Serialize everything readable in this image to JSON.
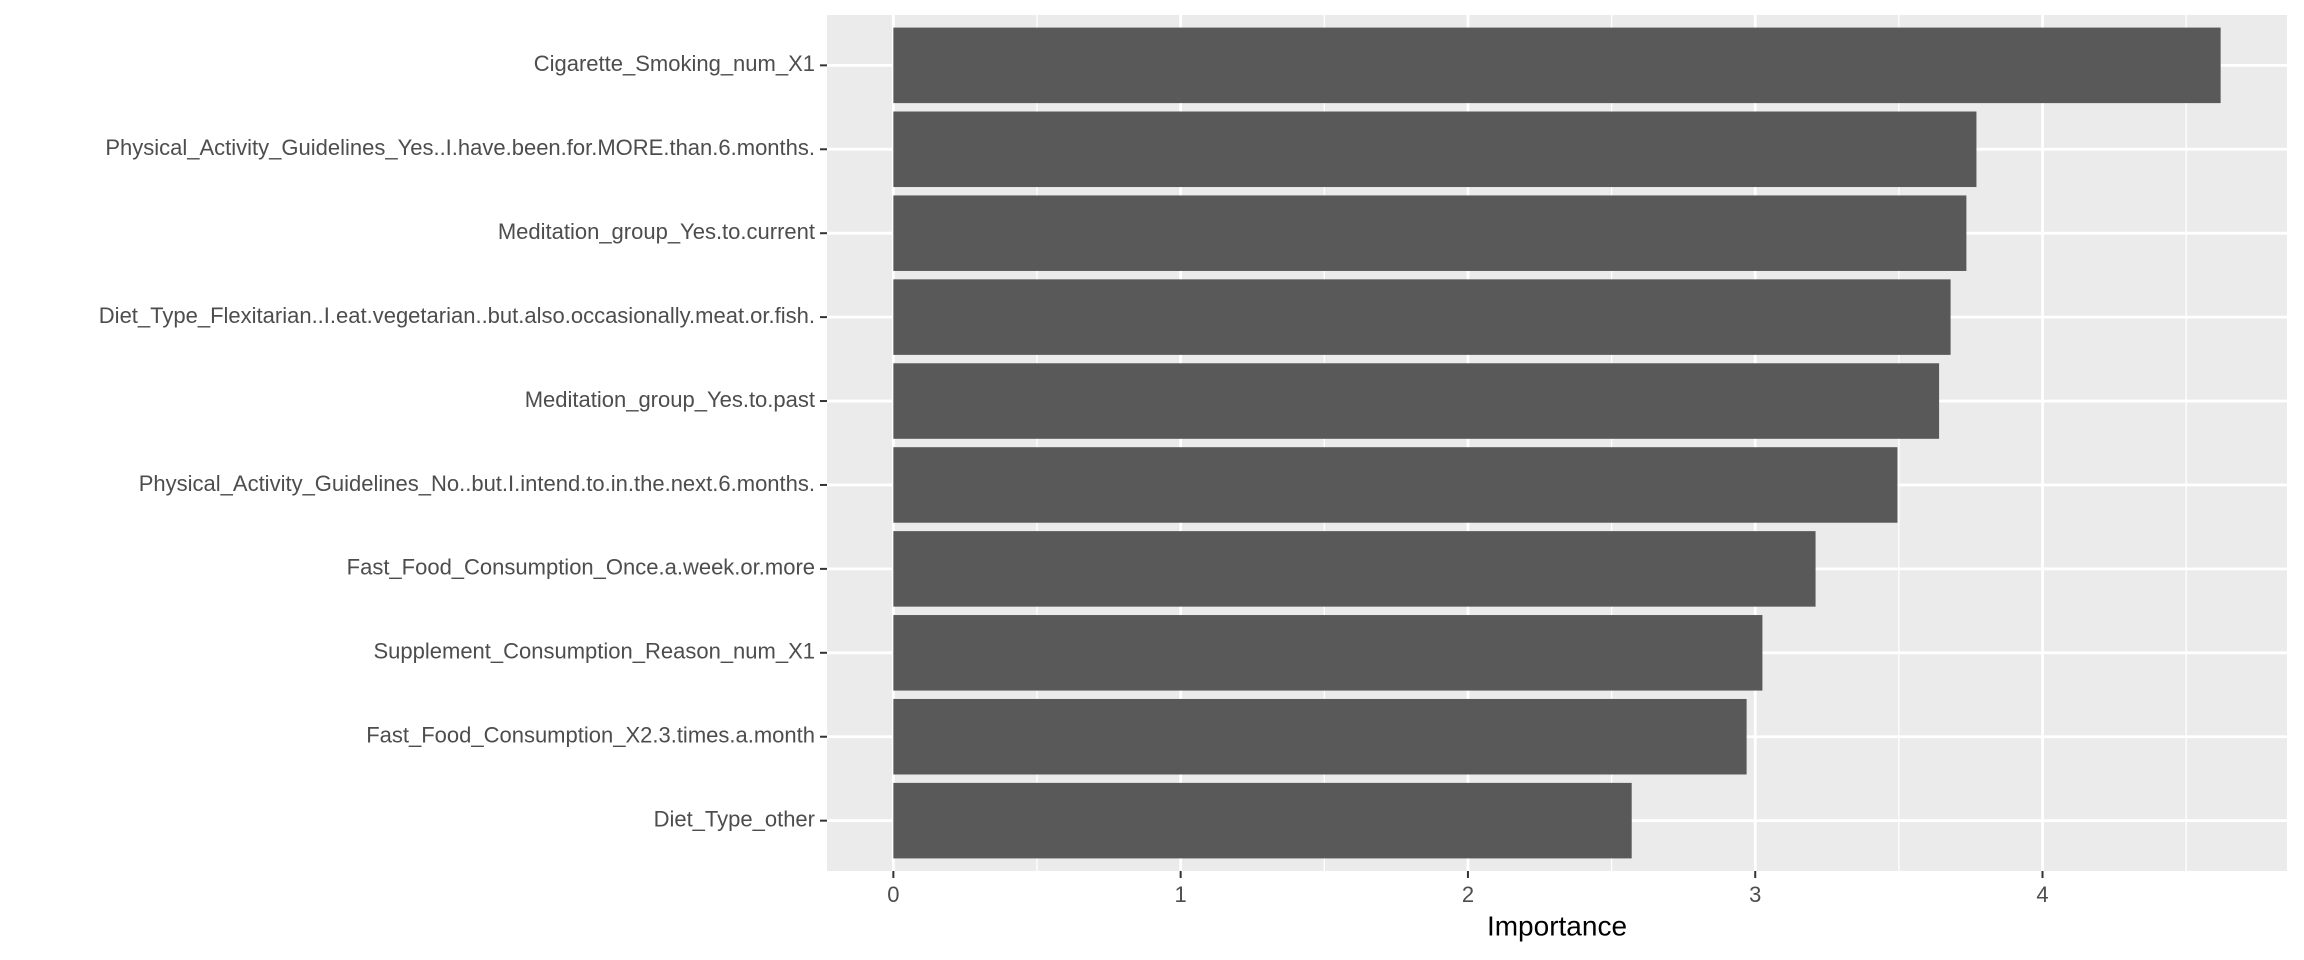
{
  "chart_data": {
    "type": "bar",
    "orientation": "horizontal",
    "x_label": "Importance",
    "categories": [
      "Cigarette_Smoking_num_X1",
      "Physical_Activity_Guidelines_Yes..I.have.been.for.MORE.than.6.months.",
      "Meditation_group_Yes.to.current",
      "Diet_Type_Flexitarian..I.eat.vegetarian..but.also.occasionally.meat.or.fish.",
      "Meditation_group_Yes.to.past",
      "Physical_Activity_Guidelines_No..but.I.intend.to.in.the.next.6.months.",
      "Fast_Food_Consumption_Once.a.week.or.more",
      "Supplement_Consumption_Reason_num_X1",
      "Fast_Food_Consumption_X2.3.times.a.month",
      "Diet_Type_other"
    ],
    "values": [
      4.62,
      3.77,
      3.735,
      3.68,
      3.64,
      3.495,
      3.21,
      3.025,
      2.97,
      2.57
    ],
    "color": "#595959",
    "xlim": [
      -0.231,
      4.851
    ],
    "xticks": [
      0,
      1,
      2,
      3,
      4
    ],
    "xminor": [
      0.5,
      1.5,
      2.5,
      3.5,
      4.5
    ],
    "grid": true
  }
}
